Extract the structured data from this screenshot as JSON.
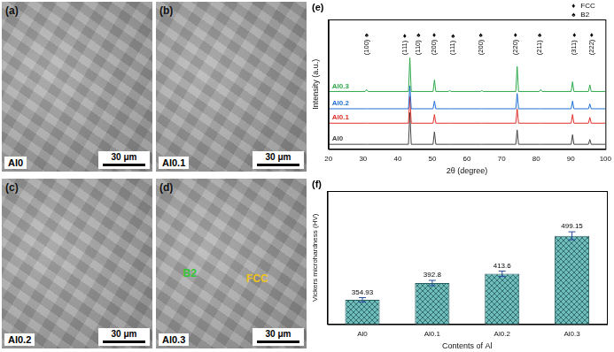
{
  "figure_panels": [
    {
      "label": "(a)",
      "sample": "Al0",
      "scale_bar": "30 μm"
    },
    {
      "label": "(b)",
      "sample": "Al0.1",
      "scale_bar": "30 μm"
    },
    {
      "label": "(c)",
      "sample": "Al0.2",
      "scale_bar": "30 μm"
    },
    {
      "label": "(d)",
      "sample": "Al0.3",
      "scale_bar": "30 μm",
      "annotations": [
        {
          "text": "B2",
          "color": "#35c435"
        },
        {
          "text": "FCC",
          "color": "#f0c419"
        }
      ]
    }
  ],
  "chart_data": [
    {
      "type": "line",
      "panel_label": "(e)",
      "x_label": "2θ (degree)",
      "y_label": "Intensity (a.u.)",
      "xlim": [
        20,
        100
      ],
      "xticks": [
        20,
        30,
        40,
        50,
        60,
        70,
        80,
        90,
        100
      ],
      "ylim": [
        0,
        135
      ],
      "tick_labels": "x",
      "grid": false,
      "legend": "upper right",
      "phases": [
        {
          "name": "FCC",
          "symbol": "♦"
        },
        {
          "name": "B2",
          "symbol": "♠"
        }
      ],
      "x": [
        20,
        30.6,
        31,
        31.4,
        43.1,
        43.5,
        43.9,
        50.2,
        50.6,
        51,
        54.6,
        55,
        55.4,
        63.9,
        64.3,
        64.7,
        74.1,
        74.5,
        74.9,
        80.9,
        81.3,
        81.7,
        90.1,
        90.5,
        90.9,
        95.1,
        95.5,
        95.9,
        100
      ],
      "series": [
        {
          "name": "Al0.3",
          "color": "#2ea84a",
          "values": [
            60,
            60,
            62,
            60,
            60,
            95,
            60,
            60,
            72,
            60,
            60,
            61,
            60,
            60,
            61,
            60,
            60,
            86,
            60,
            60,
            62,
            60,
            60,
            70,
            60,
            60,
            67,
            60,
            60
          ]
        },
        {
          "name": "Al0.2",
          "color": "#1f6fd6",
          "values": [
            42,
            42,
            42,
            42,
            42,
            66,
            42,
            42,
            50,
            42,
            42,
            42,
            42,
            42,
            42,
            42,
            42,
            58,
            42,
            42,
            42,
            42,
            42,
            50,
            42,
            42,
            47,
            42,
            42
          ]
        },
        {
          "name": "Al0.1",
          "color": "#e0302a",
          "values": [
            27,
            27,
            27,
            27,
            27,
            55,
            27,
            27,
            36,
            27,
            27,
            27,
            27,
            27,
            27,
            27,
            27,
            42,
            27,
            27,
            27,
            27,
            27,
            36,
            27,
            27,
            33,
            27,
            27
          ]
        },
        {
          "name": "Al0",
          "color": "#444444",
          "values": [
            5,
            5,
            5,
            5,
            5,
            38,
            5,
            5,
            18,
            5,
            5,
            5,
            5,
            5,
            5,
            5,
            5,
            20,
            5,
            5,
            5,
            5,
            5,
            15,
            5,
            5,
            10,
            5,
            5
          ]
        }
      ],
      "annotations": [
        {
          "x": 31,
          "text": "(100)",
          "phase": "B2"
        },
        {
          "x": 42,
          "text": "(111)",
          "phase": "FCC"
        },
        {
          "x": 46,
          "text": "(110)",
          "phase": "B2"
        },
        {
          "x": 50.5,
          "text": "(200)",
          "phase": "FCC"
        },
        {
          "x": 56,
          "text": "(111)",
          "phase": "B2"
        },
        {
          "x": 64,
          "text": "(200)",
          "phase": "B2"
        },
        {
          "x": 74,
          "text": "(220)",
          "phase": "FCC"
        },
        {
          "x": 81,
          "text": "(211)",
          "phase": "B2"
        },
        {
          "x": 91,
          "text": "(311)",
          "phase": "FCC"
        },
        {
          "x": 96,
          "text": "(222)",
          "phase": "FCC"
        }
      ]
    },
    {
      "type": "bar",
      "panel_label": "(f)",
      "x_label": "Contents of Al",
      "y_label": "Vickers microhardness (HV)",
      "categories": [
        "Al0",
        "Al0.1",
        "Al0.2",
        "Al0.3"
      ],
      "values": [
        354.93,
        392.8,
        413.6,
        499.15
      ],
      "errors": [
        5,
        6,
        6,
        9
      ],
      "color": "#6dbdbd",
      "ylim": [
        300,
        600
      ],
      "tick_labels": "x",
      "data_labels": true,
      "grid": false
    }
  ]
}
